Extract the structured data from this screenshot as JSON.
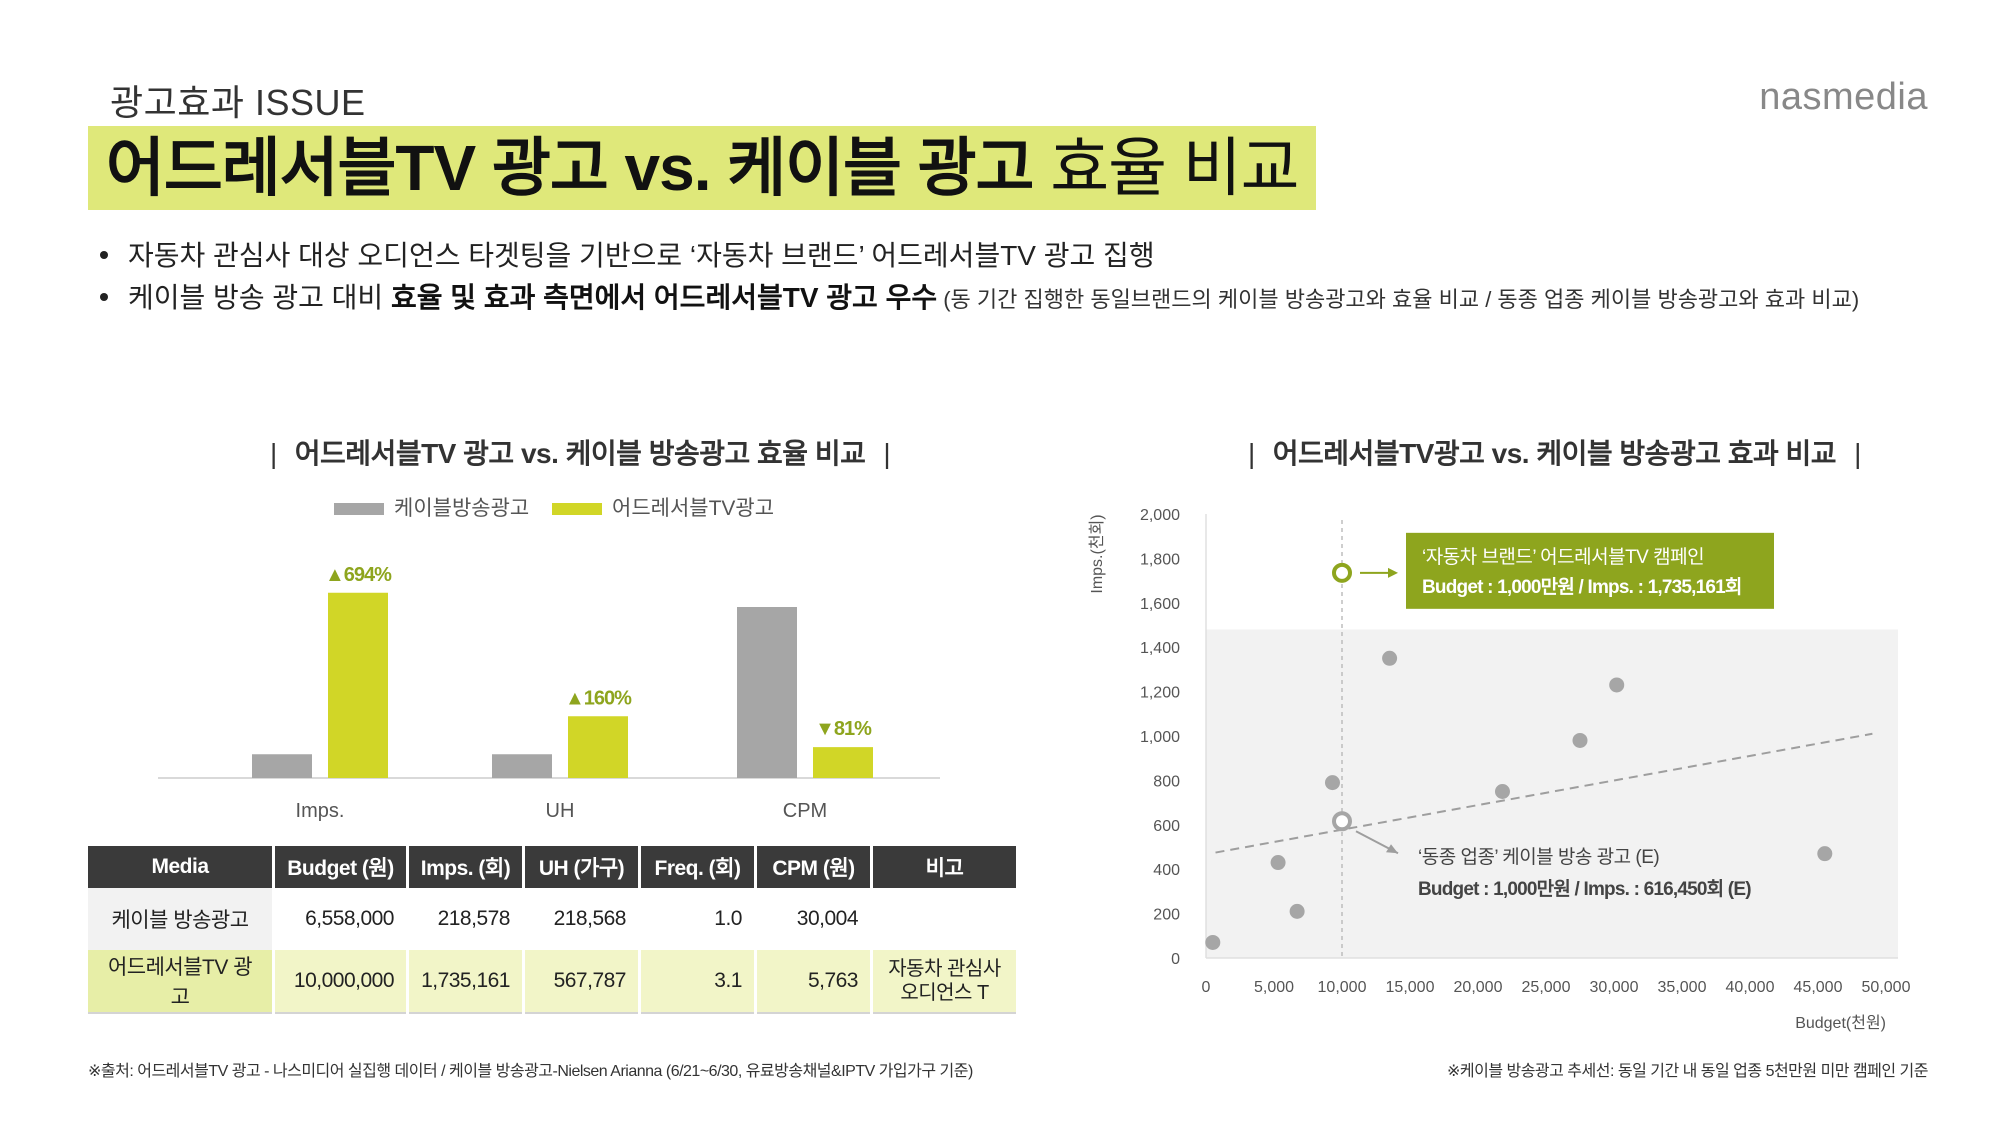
{
  "header": {
    "issue_label": "광고효과 ISSUE",
    "brand": "nasmedia",
    "title_bold": "어드레서블TV 광고 vs. 케이블 광고",
    "title_light": "효율 비교"
  },
  "bullets": {
    "b1": "자동차 관심사 대상 오디언스 타겟팅을 기반으로 ‘자동차 브랜드’ 어드레서블TV 광고 집행",
    "b2_pre": "케이블 방송 광고 대비 ",
    "b2_bold": "효율 및 효과 측면에서 어드레서블TV 광고 우수",
    "b2_small": " (동 기간 집행한 동일브랜드의 케이블 방송광고와 효율 비교 / 동종 업종 케이블 방송광고와 효과 비교)"
  },
  "left_section": {
    "title": "어드레서블TV 광고 vs. 케이블 방송광고 효율 비교",
    "bar": "|"
  },
  "right_section": {
    "title": "어드레서블TV광고 vs. 케이블 방송광고 효과 비교",
    "bar": "|"
  },
  "chart_data": [
    {
      "type": "bar",
      "categories": [
        "Imps.",
        "UH",
        "CPM"
      ],
      "series": [
        {
          "name": "케이블방송광고",
          "values": [
            10,
            10,
            72
          ],
          "color": "#a6a6a6"
        },
        {
          "name": "어드레서블TV광고",
          "values": [
            78,
            26,
            13
          ],
          "color": "#d1d627"
        }
      ],
      "annotations": [
        {
          "category": "Imps.",
          "text": "694%",
          "direction": "up"
        },
        {
          "category": "UH",
          "text": "160%",
          "direction": "up"
        },
        {
          "category": "CPM",
          "text": "81%",
          "direction": "down"
        }
      ],
      "up_glyph": "▲",
      "down_glyph": "▼",
      "ylim": [
        0,
        80
      ],
      "legend_position": "top-center",
      "grid": false
    },
    {
      "type": "scatter",
      "xlabel": "Budget(천원)",
      "ylabel": "Imps.(천회)",
      "xlim": [
        0,
        50000
      ],
      "ylim": [
        0,
        2000
      ],
      "xticks": [
        0,
        5000,
        10000,
        15000,
        20000,
        25000,
        30000,
        35000,
        40000,
        45000,
        50000
      ],
      "yticks": [
        0,
        200,
        400,
        600,
        800,
        1000,
        1200,
        1400,
        1600,
        1800,
        2000
      ],
      "xtick_labels": [
        "0",
        "5,000",
        "10,000",
        "15,000",
        "20,000",
        "25,000",
        "30,000",
        "35,000",
        "40,000",
        "45,000",
        "50,000"
      ],
      "ytick_labels": [
        "0",
        "200",
        "400",
        "600",
        "800",
        "1,000",
        "1,200",
        "1,400",
        "1,600",
        "1,800",
        "2,000"
      ],
      "points": [
        {
          "x": 500,
          "y": 70
        },
        {
          "x": 5300,
          "y": 430
        },
        {
          "x": 6700,
          "y": 210
        },
        {
          "x": 9300,
          "y": 790
        },
        {
          "x": 13500,
          "y": 1350
        },
        {
          "x": 21800,
          "y": 750
        },
        {
          "x": 27500,
          "y": 980
        },
        {
          "x": 30200,
          "y": 1230
        },
        {
          "x": 45500,
          "y": 470
        }
      ],
      "trendline": {
        "x": [
          700,
          49000
        ],
        "y": [
          475,
          1010
        ]
      },
      "highlight_addressable": {
        "x": 10000,
        "y": 1735
      },
      "highlight_cable_est": {
        "x": 10000,
        "y": 616
      },
      "shaded_region_y": [
        0,
        1480
      ],
      "callouts": {
        "addressable_line1": "‘자동차 브랜드’ 어드레서블TV 캠페인",
        "addressable_line2": "Budget : 1,000만원 / Imps. : 1,735,161회",
        "cable_line1": "‘동종 업종’ 케이블 방송 광고 (E)",
        "cable_line2": "Budget : 1,000만원 / Imps. : 616,450회 (E)"
      },
      "colors": {
        "accent": "#8ea51e",
        "points": "#a6a6a6",
        "shade": "#f2f2f2"
      }
    }
  ],
  "table": {
    "headers": [
      "Media",
      "Budget (원)",
      "Imps. (회)",
      "UH (가구)",
      "Freq. (회)",
      "CPM (원)",
      "비고"
    ],
    "rows": [
      [
        "케이블 방송광고",
        "6,558,000",
        "218,578",
        "218,568",
        "1.0",
        "30,004",
        ""
      ],
      [
        "어드레서블TV 광고",
        "10,000,000",
        "1,735,161",
        "567,787",
        "3.1",
        "5,763",
        "자동차 관심사 오디언스 T"
      ]
    ]
  },
  "notes": {
    "left": "※출처: 어드레서블TV 광고 - 나스미디어 실집행 데이터 / 케이블 방송광고-Nielsen Arianna (6/21~6/30, 유료방송채널&IPTV 가입가구 기준)",
    "right": "※케이블 방송광고 추세선: 동일 기간 내 동일 업종 5천만원 미만 캠페인 기준"
  }
}
